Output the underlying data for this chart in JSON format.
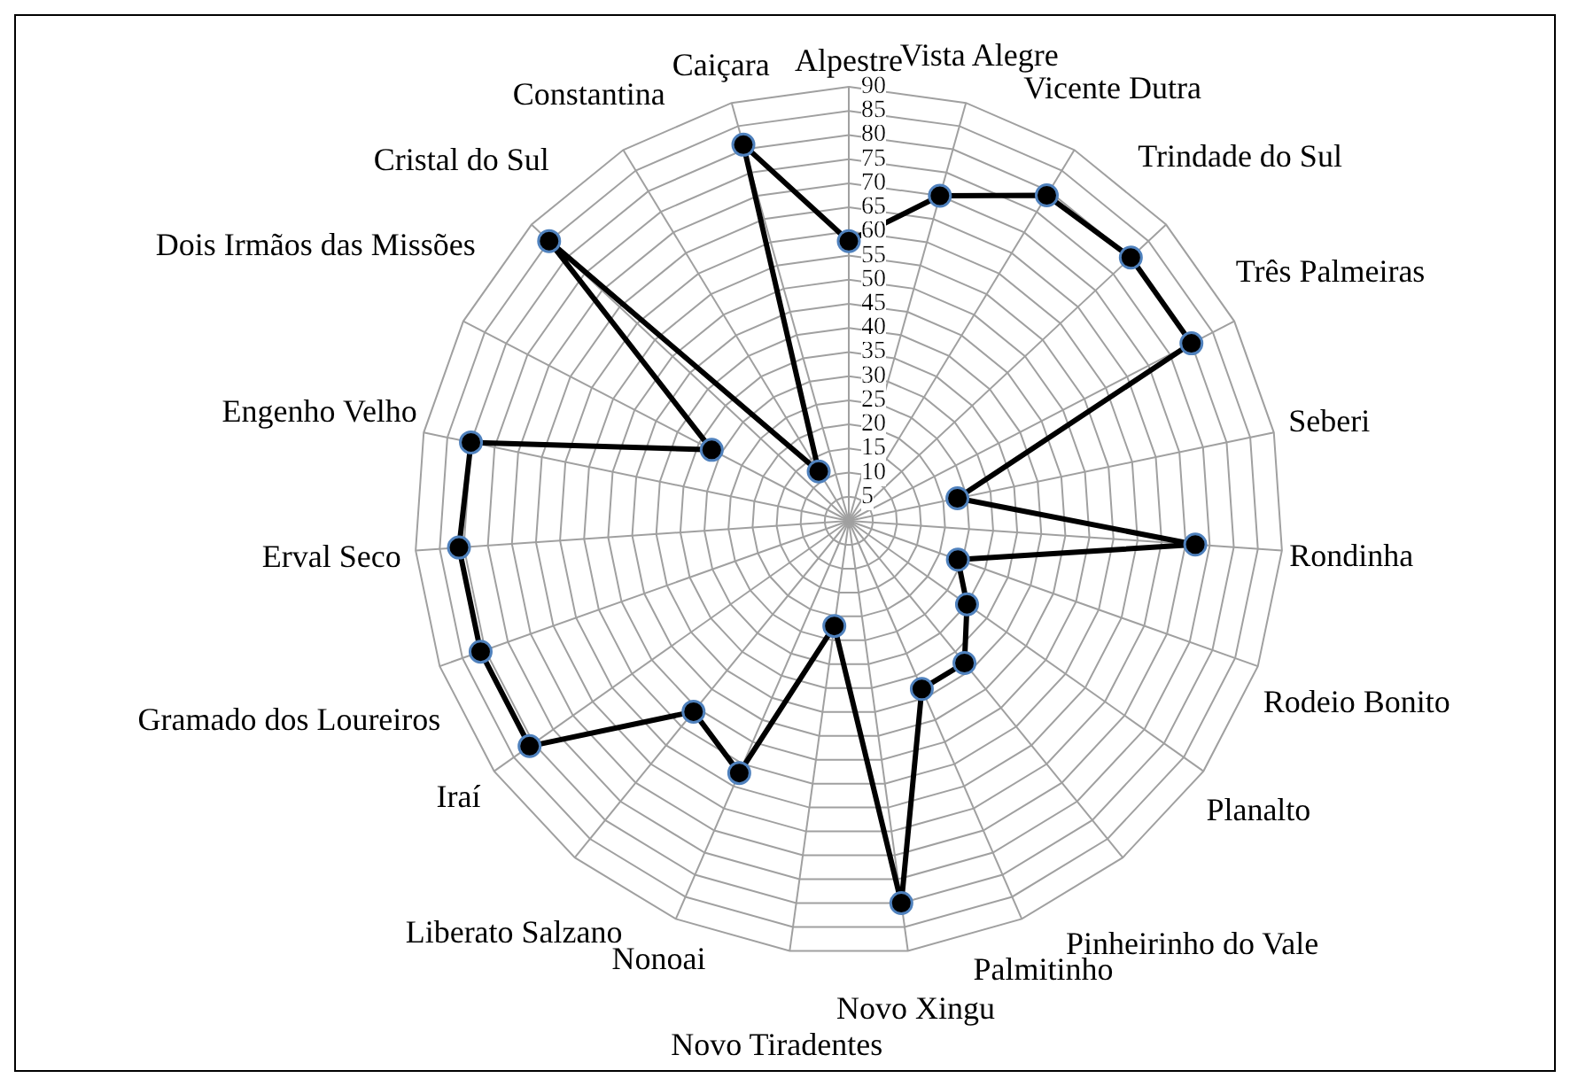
{
  "chart_data": {
    "type": "radar",
    "categories": [
      "Alpestre",
      "Vista Alegre",
      "Vicente Dutra",
      "Trindade do Sul",
      "Três Palmeiras",
      "Seberi",
      "Rondinha",
      "Rodeio Bonito",
      "Planalto",
      "Pinheirinho do Vale",
      "Palmitinho",
      "Novo Xingu",
      "Novo Tiradentes",
      "Nonoai",
      "Liberato Salzano",
      "Iraí",
      "Gramado dos Loureiros",
      "Erval Seco",
      "Engenho Velho",
      "Dois Irmãos das Missões",
      "Cristal do Sul",
      "Constantina",
      "Caiçara"
    ],
    "series": [
      {
        "color": "#000000",
        "values": [
          58,
          70,
          79,
          80,
          80,
          23,
          72,
          24,
          30,
          38,
          38,
          80,
          22,
          57,
          51,
          81,
          81,
          81,
          80,
          32,
          85,
          12,
          81
        ]
      }
    ],
    "ylim": [
      0,
      90
    ],
    "yticks": [
      5,
      10,
      15,
      20,
      25,
      30,
      35,
      40,
      45,
      50,
      55,
      60,
      65,
      70,
      75,
      80,
      85,
      90
    ],
    "grid": true,
    "marker": "circle"
  }
}
